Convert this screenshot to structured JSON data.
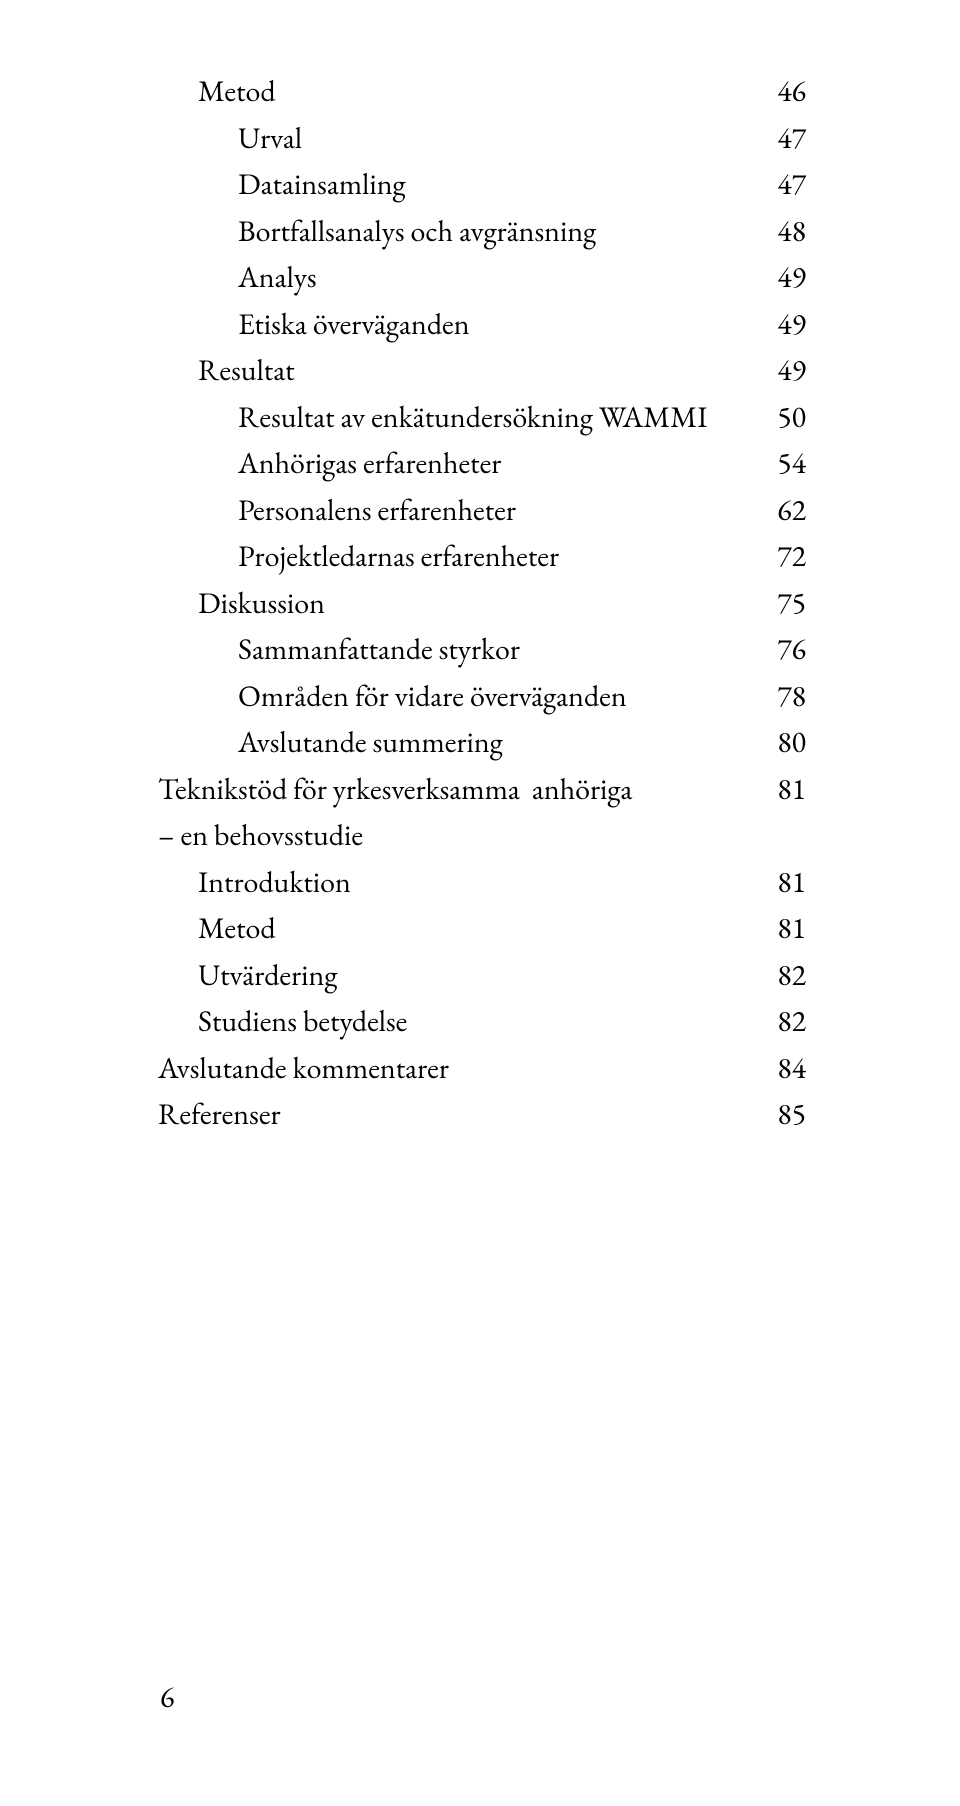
{
  "toc": [
    {
      "label": "Metod",
      "page": "46",
      "indent": 1
    },
    {
      "label": "Urval",
      "page": "47",
      "indent": 2
    },
    {
      "label": "Datainsamling",
      "page": "47",
      "indent": 2
    },
    {
      "label": "Bortfallsanalys och avgränsning",
      "page": "48",
      "indent": 2
    },
    {
      "label": "Analys",
      "page": "49",
      "indent": 2
    },
    {
      "label": "Etiska överväganden",
      "page": "49",
      "indent": 2
    },
    {
      "label": "Resultat",
      "page": "49",
      "indent": 1
    },
    {
      "label": "Resultat av enkätundersökning WAMMI",
      "page": "50",
      "indent": 2
    },
    {
      "label": "Anhörigas erfarenheter",
      "page": "54",
      "indent": 2
    },
    {
      "label": "Personalens erfarenheter",
      "page": "62",
      "indent": 2
    },
    {
      "label": "Projektledarnas erfarenheter",
      "page": "72",
      "indent": 2
    },
    {
      "label": "Diskussion",
      "page": "75",
      "indent": 1
    },
    {
      "label": "Sammanfattande styrkor",
      "page": "76",
      "indent": 2
    },
    {
      "label": "Områden för vidare överväganden",
      "page": "78",
      "indent": 2
    },
    {
      "label": "Avslutande summering",
      "page": "80",
      "indent": 2
    },
    {
      "label": "Teknikstöd för yrkesverksamma  anhöriga\n– en behovsstudie",
      "page": "81",
      "indent": 0
    },
    {
      "label": "Introduktion",
      "page": "81",
      "indent": 1
    },
    {
      "label": "Metod",
      "page": "81",
      "indent": 1
    },
    {
      "label": "Utvärdering",
      "page": "82",
      "indent": 1
    },
    {
      "label": "Studiens betydelse",
      "page": "82",
      "indent": 1
    },
    {
      "label": "Avslutande kommentarer",
      "page": "84",
      "indent": 0
    },
    {
      "label": "Referenser",
      "page": "85",
      "indent": 0
    }
  ],
  "page_number": "6",
  "colors": {
    "text": "#000000",
    "background": "#ffffff"
  },
  "typography": {
    "font_family": "Garamond / Times serif",
    "body_fontsize_pt": 15,
    "line_height": 1.55
  }
}
